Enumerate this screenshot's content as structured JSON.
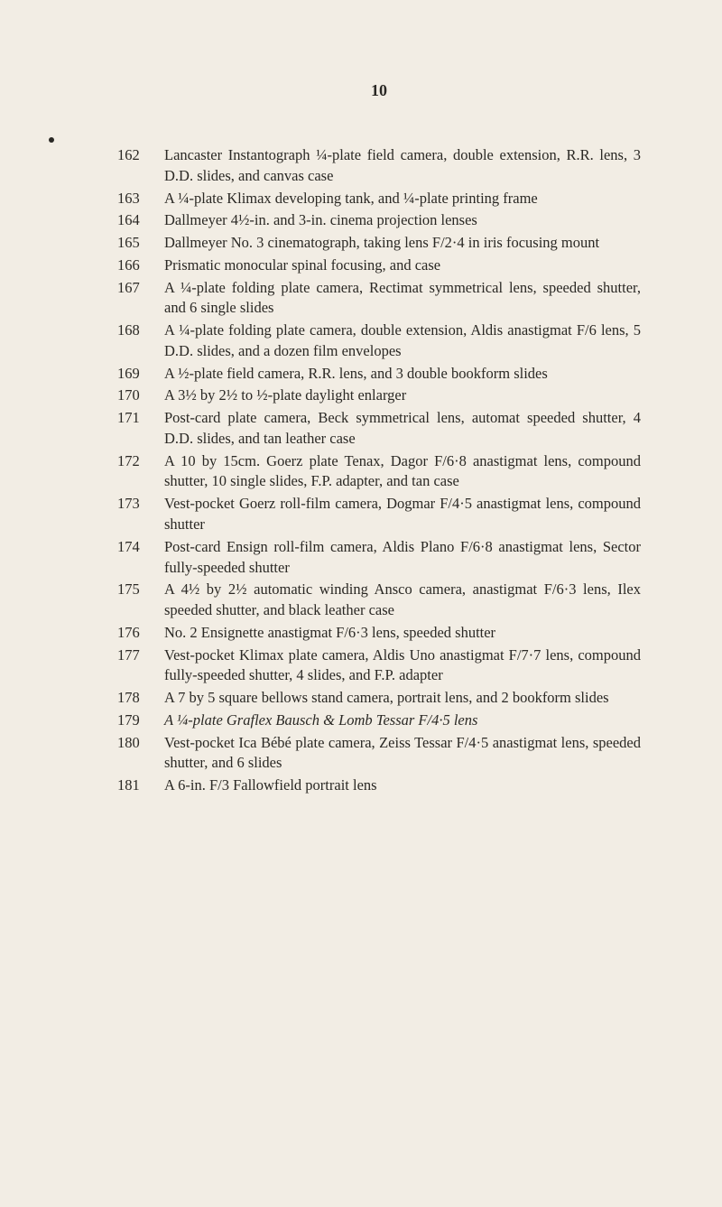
{
  "page_number": "10",
  "background_color": "#f2ede4",
  "text_color": "#2a2824",
  "font_family": "Times New Roman",
  "base_font_size": 16.5,
  "entries": [
    {
      "num": "162",
      "text": "Lancaster Instantograph ¼-plate field camera, double extension, R.R. lens, 3 D.D. slides, and canvas case"
    },
    {
      "num": "163",
      "text": "A ¼-plate Klimax developing tank, and ¼-plate printing frame"
    },
    {
      "num": "164",
      "text": "Dallmeyer 4½-in. and 3-in. cinema projection lenses"
    },
    {
      "num": "165",
      "text": "Dallmeyer No. 3 cinematograph, taking lens F/2·4 in iris focusing mount"
    },
    {
      "num": "166",
      "text": "Prismatic monocular spinal focusing, and case"
    },
    {
      "num": "167",
      "text": "A ¼-plate folding plate camera, Rectimat symmetrical lens, speeded shutter, and 6 single slides"
    },
    {
      "num": "168",
      "text": "A ¼-plate folding plate camera, double extension, Aldis anastigmat F/6 lens, 5 D.D. slides, and a dozen film envelopes"
    },
    {
      "num": "169",
      "text": "A ½-plate field camera, R.R. lens, and 3 double bookform slides"
    },
    {
      "num": "170",
      "text": "A 3½ by 2½ to ½-plate daylight enlarger"
    },
    {
      "num": "171",
      "text": "Post-card plate camera, Beck symmetrical lens, automat speeded shutter, 4 D.D. slides, and tan leather case"
    },
    {
      "num": "172",
      "text": "A 10 by 15cm. Goerz plate Tenax, Dagor F/6·8 anastigmat lens, compound shutter, 10 single slides, F.P. adapter, and tan case"
    },
    {
      "num": "173",
      "text": "Vest-pocket Goerz roll-film camera, Dogmar F/4·5 anastigmat lens, compound shutter"
    },
    {
      "num": "174",
      "text": "Post-card Ensign roll-film camera, Aldis Plano F/6·8 anastigmat lens, Sector fully-speeded shutter"
    },
    {
      "num": "175",
      "text": "A 4½ by 2½ automatic winding Ansco camera, anastigmat F/6·3 lens, Ilex speeded shutter, and black leather case"
    },
    {
      "num": "176",
      "text": "No. 2 Ensignette anastigmat F/6·3 lens, speeded shutter"
    },
    {
      "num": "177",
      "text": "Vest-pocket Klimax plate camera, Aldis Uno anastigmat F/7·7 lens, compound fully-speeded shutter, 4 slides, and F.P. adapter"
    },
    {
      "num": "178",
      "text": "A 7 by 5 square bellows stand camera, portrait lens, and 2 bookform slides"
    },
    {
      "num": "179",
      "text": "A ¼-plate Graflex Bausch & Lomb Tessar F/4·5 lens",
      "italic": true
    },
    {
      "num": "180",
      "text": "Vest-pocket Ica Bébé plate camera, Zeiss Tessar F/4·5 anastigmat lens, speeded shutter, and 6 slides"
    },
    {
      "num": "181",
      "text": "A 6-in. F/3 Fallowfield portrait lens"
    }
  ]
}
